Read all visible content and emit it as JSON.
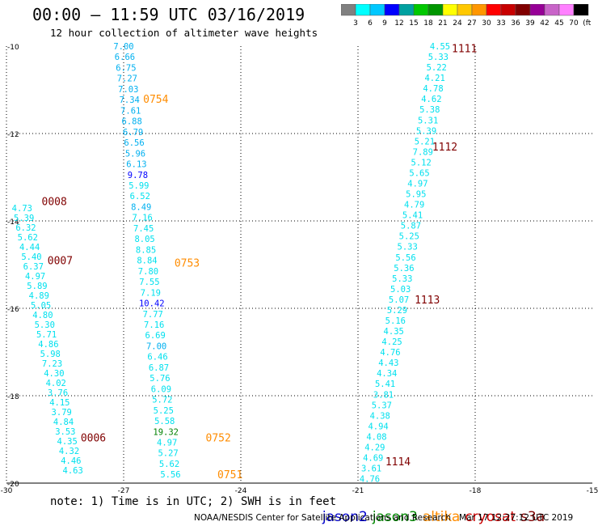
{
  "header": {
    "title": "00:00 – 11:59 UTC 03/16/2019",
    "subtitle": "12 hour collection of altimeter wave heights"
  },
  "scale": {
    "colors": [
      "#808080",
      "#00ffff",
      "#00c8ff",
      "#0000ff",
      "#00a0a0",
      "#00c800",
      "#009600",
      "#ffff00",
      "#ffc800",
      "#ff9600",
      "#ff0000",
      "#c80000",
      "#800000",
      "#960096",
      "#c864c8",
      "#ff80ff",
      "#000000"
    ],
    "labels": [
      "3",
      "6",
      "9",
      "12",
      "15",
      "18",
      "21",
      "24",
      "27",
      "30",
      "33",
      "36",
      "39",
      "42",
      "45",
      "70",
      "(ft)"
    ]
  },
  "footer": {
    "note": "note: 1) Time is in UTC; 2) SWH is in feet",
    "credit": "NOAA/NESDIS Center for Satellite Applications and Research   Mar 17 12:27:12 UTC 2019"
  },
  "legend": [
    {
      "name": "jason2",
      "color": "#0000cc"
    },
    {
      "name": "jason3",
      "color": "#008800"
    },
    {
      "name": "altika",
      "color": "#ff8c00"
    },
    {
      "name": "cryosat",
      "color": "#cc0000"
    },
    {
      "name": "s3a",
      "color": "#800000"
    }
  ],
  "chart_data": {
    "type": "scatter",
    "xlim": [
      -30,
      -15
    ],
    "ylim": [
      -20,
      -10
    ],
    "x_ticks": [
      "-30",
      "-27",
      "-24",
      "-21",
      "-18",
      "-15"
    ],
    "y_ticks": [
      "-10",
      "-12",
      "-14",
      "-16",
      "-18",
      "-20"
    ],
    "grid": true,
    "colors": {
      "cyan": "#00e0ee",
      "sky": "#00b0f0",
      "blue": "#0000ff",
      "green": "#008000",
      "orange": "#ff8c00",
      "darkred": "#800000"
    },
    "tracks": [
      {
        "x0": -27.0,
        "x1": -25.8,
        "y0": -10.0,
        "y1": -19.8,
        "values": [
          "7.00",
          "6.66",
          "6.75",
          "7.27",
          "7.03",
          "7.34",
          "7.61",
          "6.88",
          "6.79",
          "6.56",
          "5.96",
          "6.13",
          "9.78",
          "5.99",
          "6.52",
          "8.49",
          "7.16",
          "7.45",
          "8.05",
          "8.85",
          "8.84",
          "7.80",
          "7.55",
          "7.19",
          "10.42",
          "7.77",
          "7.16",
          "6.69",
          "7.00",
          "6.46",
          "6.87",
          "5.76",
          "6.09",
          "5.72",
          "5.25",
          "5.58",
          "19.32",
          "4.97",
          "5.27",
          "5.62",
          "5.56"
        ]
      },
      {
        "x0": -29.6,
        "x1": -28.3,
        "y0": -13.7,
        "y1": -19.7,
        "values": [
          "4.73",
          "5.39",
          "6.32",
          "5.62",
          "4.44",
          "5.40",
          "6.37",
          "4.97",
          "5.89",
          "4.89",
          "5.05",
          "4.80",
          "5.30",
          "5.71",
          "4.86",
          "5.98",
          "7.23",
          "4.30",
          "4.02",
          "3.76",
          "4.15",
          "3.79",
          "4.84",
          "3.53",
          "4.35",
          "4.32",
          "4.46",
          "4.63"
        ]
      },
      {
        "x0": -18.9,
        "x1": -20.7,
        "y0": -10.0,
        "y1": -19.9,
        "values": [
          "4.55",
          "5.33",
          "5.22",
          "4.21",
          "4.78",
          "4.62",
          "5.38",
          "5.31",
          "5.39",
          "5.21",
          "7.89",
          "5.12",
          "5.65",
          "4.97",
          "5.95",
          "4.79",
          "5.41",
          "5.87",
          "5.25",
          "5.33",
          "5.56",
          "5.36",
          "5.33",
          "5.03",
          "5.07",
          "5.29",
          "5.16",
          "4.35",
          "4.25",
          "4.76",
          "4.43",
          "4.34",
          "5.41",
          "3.81",
          "5.37",
          "4.38",
          "4.94",
          "4.08",
          "4.29",
          "4.69",
          "3.61",
          "4.76"
        ]
      }
    ],
    "value_colors": {
      "9.78": "blue",
      "10.42": "blue",
      "19.32": "green",
      "6.66": "sky",
      "6.75": "sky",
      "7.27": "sky",
      "7.03": "sky",
      "7.34": "sky",
      "7.61": "sky",
      "6.88": "sky",
      "6.79": "sky",
      "6.56": "sky",
      "5.96": "sky",
      "6.13": "sky",
      "7.00": "sky",
      "8.49": "sky"
    },
    "labels": [
      {
        "text": "0754",
        "x": -26.5,
        "y": -11.2,
        "color": "orange"
      },
      {
        "text": "0753",
        "x": -25.7,
        "y": -14.95,
        "color": "orange"
      },
      {
        "text": "0752",
        "x": -24.9,
        "y": -18.95,
        "color": "orange"
      },
      {
        "text": "0751",
        "x": -24.6,
        "y": -19.8,
        "color": "orange"
      },
      {
        "text": "0008",
        "x": -29.1,
        "y": -13.55,
        "color": "darkred"
      },
      {
        "text": "0007",
        "x": -28.95,
        "y": -14.9,
        "color": "darkred"
      },
      {
        "text": "0006",
        "x": -28.1,
        "y": -18.95,
        "color": "darkred"
      },
      {
        "text": "1111",
        "x": -18.6,
        "y": -10.05,
        "color": "darkred"
      },
      {
        "text": "1112",
        "x": -19.1,
        "y": -12.3,
        "color": "darkred"
      },
      {
        "text": "1113",
        "x": -19.55,
        "y": -15.8,
        "color": "darkred"
      },
      {
        "text": "1114",
        "x": -20.3,
        "y": -19.5,
        "color": "darkred"
      }
    ]
  }
}
